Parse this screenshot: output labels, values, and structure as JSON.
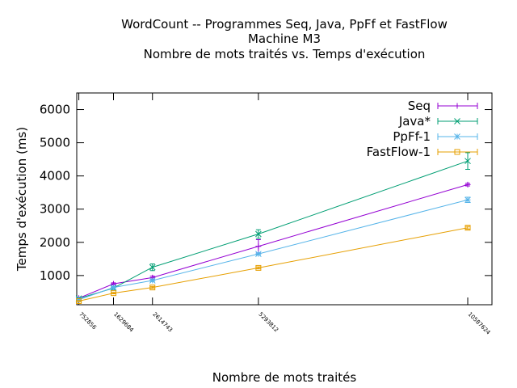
{
  "chart_data": {
    "type": "line",
    "title": [
      "WordCount -- Programmes Seq, Java, PpFf et FastFlow",
      "Machine M3",
      "Nombre de mots traités vs. Temps d'exécution"
    ],
    "xlabel": "Nombre de mots traités",
    "ylabel": "Temps d'exécution (ms)",
    "x": [
      752856,
      1629684,
      2614743,
      5293812,
      10587624
    ],
    "x_tick_labels": [
      "752856",
      "1629684",
      "2614743",
      "5293812",
      "10587624"
    ],
    "xlim": [
      700000,
      11200000
    ],
    "ylim": [
      120,
      6500
    ],
    "y_ticks": [
      1000,
      2000,
      3000,
      4000,
      5000,
      6000
    ],
    "y_tick_labels": [
      "1000",
      "2000",
      "3000",
      "4000",
      "5000",
      "6000"
    ],
    "legend_position": "top-right",
    "series": [
      {
        "name": "Seq",
        "color": "#9400d3",
        "marker": "plus",
        "values": [
          320,
          750,
          940,
          1880,
          3740
        ],
        "errors": [
          20,
          30,
          40,
          200,
          40
        ]
      },
      {
        "name": "Java*",
        "color": "#009e73",
        "marker": "x",
        "values": [
          310,
          620,
          1250,
          2250,
          4450
        ],
        "errors": [
          20,
          40,
          100,
          130,
          250
        ]
      },
      {
        "name": "PpFf-1",
        "color": "#56b4e9",
        "marker": "star",
        "values": [
          270,
          640,
          850,
          1650,
          3280
        ],
        "errors": [
          20,
          30,
          30,
          30,
          80
        ]
      },
      {
        "name": "FastFlow-1",
        "color": "#e69f00",
        "marker": "square",
        "values": [
          230,
          470,
          640,
          1230,
          2440
        ],
        "errors": [
          15,
          20,
          30,
          30,
          40
        ]
      }
    ]
  }
}
